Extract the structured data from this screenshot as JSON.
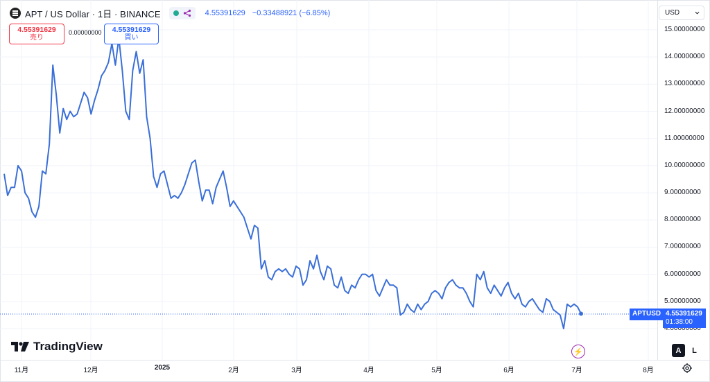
{
  "legend": {
    "title": "APT / US Dollar · 1日 · BINANCE",
    "price": "4.55391629",
    "change": "−0.33488921 (−6.85%)",
    "status_color": "#22ab94"
  },
  "trade": {
    "sell_price": "4.55391629",
    "sell_label": "売り",
    "buy_price": "4.55391629",
    "buy_label": "買い",
    "spread": "0.00000000"
  },
  "currency": {
    "label": "USD"
  },
  "price_tag": {
    "symbol": "APTUSD",
    "price": "4.55391629",
    "countdown": "01:38:00"
  },
  "branding": {
    "name": "TradingView"
  },
  "buttons": {
    "auto": "A",
    "log": "L"
  },
  "icons": {
    "symbol": "apt-logo-icon",
    "share": "share-icon",
    "bolt": "lightning-icon",
    "gear": "settings-gear-icon"
  },
  "colors": {
    "line": "#3a6fd8",
    "accent": "#2962ff",
    "sell": "#f23645"
  },
  "chart_data": {
    "type": "line",
    "y_ticks": [
      "15.00000000",
      "14.00000000",
      "13.00000000",
      "12.00000000",
      "11.00000000",
      "10.00000000",
      "9.00000000",
      "8.00000000",
      "7.00000000",
      "6.00000000",
      "5.00000000",
      "4.00000000"
    ],
    "x_ticks": [
      "11月",
      "12月",
      "2025",
      "2月",
      "3月",
      "4月",
      "5月",
      "6月",
      "7月",
      "8月"
    ],
    "ylim": [
      3.5,
      15.5
    ],
    "series": [
      {
        "values": [
          9.7,
          8.9,
          9.2,
          9.2,
          10.0,
          9.8,
          9.0,
          8.8,
          8.3,
          8.1,
          8.5,
          9.8,
          9.7,
          10.8,
          13.7,
          12.6,
          11.2,
          12.1,
          11.7,
          12.0,
          11.8,
          11.9,
          12.3,
          12.7,
          12.5,
          11.9,
          12.4,
          12.8,
          13.3,
          13.5,
          13.8,
          14.5,
          13.7,
          14.7,
          13.5,
          12.0,
          11.7,
          13.5,
          14.2,
          13.4,
          13.9,
          11.8,
          11.0,
          9.6,
          9.2,
          9.7,
          9.8,
          9.3,
          8.8,
          8.9,
          8.8,
          9.0,
          9.3,
          9.7,
          10.1,
          10.2,
          9.4,
          8.7,
          9.1,
          9.1,
          8.6,
          9.2,
          9.5,
          9.8,
          9.2,
          8.5,
          8.7,
          8.5,
          8.3,
          8.1,
          7.7,
          7.3,
          7.8,
          7.7,
          6.2,
          6.5,
          5.9,
          5.8,
          6.1,
          6.2,
          6.1,
          6.2,
          6.0,
          5.9,
          6.3,
          6.2,
          5.6,
          5.8,
          6.5,
          6.2,
          6.7,
          6.1,
          5.8,
          6.3,
          6.2,
          5.6,
          5.5,
          5.9,
          5.4,
          5.3,
          5.6,
          5.5,
          5.8,
          6.0,
          6.0,
          5.9,
          6.0,
          5.4,
          5.2,
          5.5,
          5.8,
          5.6,
          5.6,
          5.5,
          4.5,
          4.6,
          4.9,
          4.7,
          4.6,
          4.9,
          4.7,
          4.9,
          5.0,
          5.3,
          5.4,
          5.3,
          5.1,
          5.5,
          5.7,
          5.8,
          5.6,
          5.5,
          5.5,
          5.3,
          5.0,
          4.8,
          6.0,
          5.8,
          6.1,
          5.5,
          5.3,
          5.6,
          5.4,
          5.2,
          5.5,
          5.7,
          5.3,
          5.1,
          5.3,
          4.9,
          4.8,
          5.0,
          5.1,
          4.9,
          4.7,
          4.6,
          5.1,
          5.0,
          4.7,
          4.6,
          4.5,
          4.0,
          4.9,
          4.8,
          4.9,
          4.8,
          4.55
        ]
      }
    ]
  }
}
